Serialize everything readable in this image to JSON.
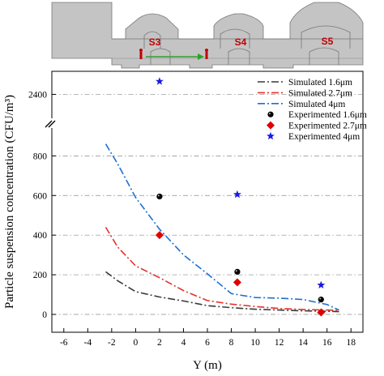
{
  "chart_data": {
    "type": "line",
    "xlabel": "Y (m)",
    "ylabel": "Particle suspension concentration  (CFU/m³)",
    "xlim": [
      -7,
      19
    ],
    "xticks": [
      "-6",
      "-4",
      "-2",
      "0",
      "2",
      "4",
      "6",
      "8",
      "10",
      "12",
      "14",
      "16",
      "18"
    ],
    "ylim_lower": [
      -90,
      920
    ],
    "yticks_lower": [
      "0",
      "200",
      "400",
      "600",
      "800"
    ],
    "ylim_upper": [
      2200,
      2560
    ],
    "yticks_upper": [
      "2400"
    ],
    "axis_break": true,
    "grid": "horizontal dash-dot",
    "legend_position": "top-right",
    "schematic_labels": [
      "S3",
      "S4",
      "S5"
    ],
    "series": [
      {
        "name": "Simulated 1.6μm",
        "kind": "line",
        "color": "#3a3a3a",
        "dash": "dash-dot",
        "x": [
          -2.5,
          -1.5,
          0,
          2,
          4,
          6,
          8,
          10,
          12,
          14,
          16,
          17
        ],
        "y": [
          215,
          170,
          115,
          88,
          68,
          44,
          34,
          26,
          22,
          18,
          16,
          14
        ]
      },
      {
        "name": "Simulated 2.7μm",
        "kind": "line",
        "color": "#e5312b",
        "dash": "dash-dot",
        "x": [
          -2.5,
          -1.5,
          0,
          2,
          4,
          6,
          8,
          10,
          12,
          14,
          16,
          17
        ],
        "y": [
          440,
          340,
          245,
          185,
          120,
          70,
          52,
          40,
          30,
          25,
          22,
          20
        ]
      },
      {
        "name": "Simulated 4μm",
        "kind": "line",
        "color": "#1f6fd1",
        "dash": "dash-dot",
        "x": [
          -2.5,
          -1.5,
          0,
          2,
          4,
          6,
          8,
          10,
          12,
          14,
          16,
          17
        ],
        "y": [
          860,
          760,
          590,
          430,
          300,
          205,
          105,
          85,
          82,
          75,
          50,
          22
        ]
      },
      {
        "name": "Experimented 1.6μm",
        "kind": "scatter",
        "marker": "circle",
        "color": "#000000",
        "x": [
          2,
          8.5,
          15.5
        ],
        "y": [
          595,
          215,
          75
        ]
      },
      {
        "name": "Experimented 2.7μm",
        "kind": "scatter",
        "marker": "diamond",
        "color": "#e00000",
        "x": [
          2,
          8.5,
          15.5
        ],
        "y": [
          400,
          162,
          10
        ]
      },
      {
        "name": "Experimented 4μm",
        "kind": "scatter",
        "marker": "star",
        "color": "#1a1adf",
        "x": [
          2,
          8.5,
          15.5
        ],
        "y": [
          2490,
          605,
          148
        ]
      }
    ]
  }
}
